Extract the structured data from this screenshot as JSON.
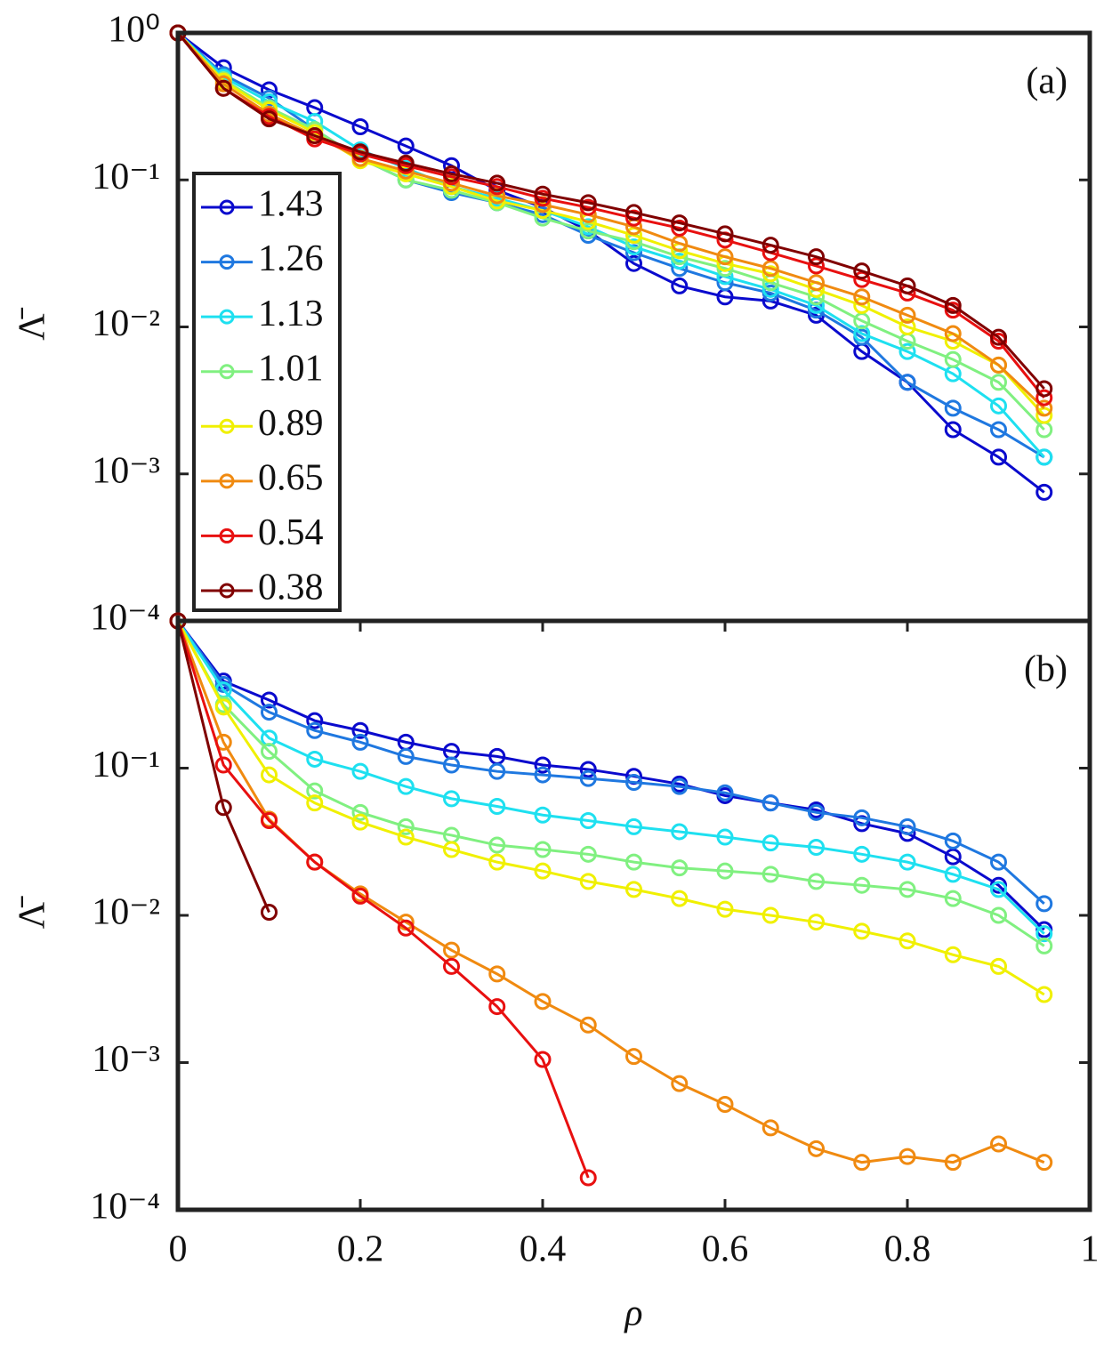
{
  "chart_data": [
    {
      "type": "line",
      "annotation": "(a)",
      "y_label": "Λ̄",
      "log_y": true,
      "grid": false,
      "legend": "left",
      "x": [
        0,
        0.05,
        0.1,
        0.15,
        0.2,
        0.25,
        0.3,
        0.35,
        0.4,
        0.45,
        0.5,
        0.55,
        0.6,
        0.65,
        0.7,
        0.75,
        0.8,
        0.85,
        0.9,
        0.95
      ],
      "xlim": [
        0,
        1
      ],
      "ylim": [
        0.0001,
        1
      ],
      "yticks": [
        {
          "value": 1,
          "label": "10⁰"
        },
        {
          "value": 0.1,
          "label": "10⁻¹"
        },
        {
          "value": 0.01,
          "label": "10⁻²"
        },
        {
          "value": 0.001,
          "label": "10⁻³"
        },
        {
          "value": 0.0001,
          "label": "10⁻⁴"
        }
      ],
      "series": [
        {
          "name": "1.43",
          "color": "#0a0acd",
          "values": [
            1,
            0.58,
            0.41,
            0.31,
            0.23,
            0.17,
            0.125,
            0.085,
            0.065,
            0.045,
            0.027,
            0.019,
            0.016,
            0.015,
            0.012,
            0.0068,
            0.0042,
            0.002,
            0.0013,
            0.00075
          ]
        },
        {
          "name": "1.26",
          "color": "#1f78e0",
          "values": [
            1,
            0.52,
            0.36,
            0.22,
            0.14,
            0.1,
            0.082,
            0.07,
            0.058,
            0.042,
            0.032,
            0.025,
            0.02,
            0.017,
            0.013,
            0.0085,
            0.0042,
            0.0028,
            0.002,
            0.0013
          ]
        },
        {
          "name": "1.13",
          "color": "#1ee0f0",
          "values": [
            1,
            0.5,
            0.34,
            0.25,
            0.16,
            0.12,
            0.09,
            0.075,
            0.062,
            0.048,
            0.035,
            0.028,
            0.022,
            0.018,
            0.014,
            0.009,
            0.0068,
            0.0048,
            0.0029,
            0.0013
          ]
        },
        {
          "name": "1.01",
          "color": "#80f080",
          "values": [
            1,
            0.48,
            0.31,
            0.22,
            0.14,
            0.1,
            0.085,
            0.07,
            0.055,
            0.045,
            0.038,
            0.03,
            0.025,
            0.02,
            0.016,
            0.011,
            0.008,
            0.006,
            0.0042,
            0.002
          ]
        },
        {
          "name": "0.89",
          "color": "#f0f000",
          "values": [
            1,
            0.47,
            0.3,
            0.21,
            0.135,
            0.11,
            0.09,
            0.072,
            0.062,
            0.052,
            0.042,
            0.033,
            0.027,
            0.023,
            0.018,
            0.014,
            0.01,
            0.008,
            0.0055,
            0.0025
          ]
        },
        {
          "name": "0.65",
          "color": "#f08a10",
          "values": [
            1,
            0.45,
            0.28,
            0.2,
            0.14,
            0.115,
            0.095,
            0.078,
            0.068,
            0.058,
            0.048,
            0.037,
            0.03,
            0.025,
            0.02,
            0.016,
            0.012,
            0.009,
            0.0055,
            0.0028
          ]
        },
        {
          "name": "0.54",
          "color": "#e81010",
          "values": [
            1,
            0.42,
            0.27,
            0.19,
            0.15,
            0.125,
            0.105,
            0.09,
            0.075,
            0.065,
            0.055,
            0.047,
            0.039,
            0.032,
            0.026,
            0.021,
            0.017,
            0.013,
            0.008,
            0.0033
          ]
        },
        {
          "name": "0.38",
          "color": "#800000",
          "values": [
            1,
            0.42,
            0.26,
            0.2,
            0.155,
            0.13,
            0.11,
            0.095,
            0.08,
            0.07,
            0.06,
            0.051,
            0.043,
            0.036,
            0.03,
            0.024,
            0.019,
            0.014,
            0.0085,
            0.0038
          ]
        }
      ]
    },
    {
      "type": "line",
      "annotation": "(b)",
      "y_label": "Λ̄",
      "x_label": "ρ",
      "log_y": true,
      "grid": false,
      "x": [
        0,
        0.05,
        0.1,
        0.15,
        0.2,
        0.25,
        0.3,
        0.35,
        0.4,
        0.45,
        0.5,
        0.55,
        0.6,
        0.65,
        0.7,
        0.75,
        0.8,
        0.85,
        0.9,
        0.95
      ],
      "xlim": [
        0,
        1
      ],
      "ylim": [
        0.0001,
        1
      ],
      "xticks": [
        0,
        0.2,
        0.4,
        0.6,
        0.8,
        1
      ],
      "yticks": [
        {
          "value": 0.1,
          "label": "10⁻¹"
        },
        {
          "value": 0.01,
          "label": "10⁻²"
        },
        {
          "value": 0.001,
          "label": "10⁻³"
        },
        {
          "value": 0.0001,
          "label": "10⁻⁴"
        }
      ],
      "series": [
        {
          "color": "#0a0acd",
          "values": [
            1,
            0.39,
            0.29,
            0.21,
            0.18,
            0.15,
            0.13,
            0.12,
            0.105,
            0.098,
            0.088,
            0.078,
            0.065,
            0.058,
            0.052,
            0.042,
            0.036,
            0.025,
            0.016,
            0.008
          ]
        },
        {
          "color": "#1f78e0",
          "values": [
            1,
            0.37,
            0.24,
            0.18,
            0.15,
            0.12,
            0.105,
            0.095,
            0.09,
            0.085,
            0.08,
            0.075,
            0.068,
            0.058,
            0.05,
            0.046,
            0.04,
            0.032,
            0.023,
            0.012
          ]
        },
        {
          "color": "#1ee0f0",
          "values": [
            1,
            0.34,
            0.16,
            0.115,
            0.095,
            0.075,
            0.062,
            0.055,
            0.048,
            0.044,
            0.04,
            0.037,
            0.034,
            0.031,
            0.029,
            0.026,
            0.023,
            0.019,
            0.015,
            0.0075
          ]
        },
        {
          "color": "#80f080",
          "values": [
            1,
            0.27,
            0.13,
            0.07,
            0.05,
            0.04,
            0.035,
            0.03,
            0.028,
            0.026,
            0.023,
            0.021,
            0.02,
            0.019,
            0.017,
            0.016,
            0.015,
            0.013,
            0.01,
            0.0062
          ]
        },
        {
          "color": "#f0f000",
          "values": [
            1,
            0.26,
            0.09,
            0.058,
            0.043,
            0.034,
            0.028,
            0.023,
            0.02,
            0.017,
            0.015,
            0.013,
            0.011,
            0.01,
            0.009,
            0.0078,
            0.0067,
            0.0054,
            0.0045,
            0.0029
          ]
        },
        {
          "color": "#f08a10",
          "values": [
            1,
            0.15,
            0.045,
            0.023,
            0.014,
            0.009,
            0.0058,
            0.004,
            0.0026,
            0.0018,
            0.0011,
            0.00072,
            0.00052,
            0.00036,
            0.00026,
            0.00021,
            0.00023,
            0.00021,
            0.00028,
            0.00021
          ]
        },
        {
          "color": "#e81010",
          "values": [
            1,
            0.105,
            0.044,
            0.023,
            0.0135,
            0.0082,
            0.0045,
            0.0024,
            0.00105,
            0.000165,
            null,
            null,
            null,
            null,
            null,
            null,
            null,
            null,
            null,
            null
          ]
        },
        {
          "color": "#800000",
          "values": [
            1,
            0.054,
            0.0105,
            null,
            null,
            null,
            null,
            null,
            null,
            null,
            null,
            null,
            null,
            null,
            null,
            null,
            null,
            null,
            null,
            null
          ]
        }
      ]
    }
  ]
}
